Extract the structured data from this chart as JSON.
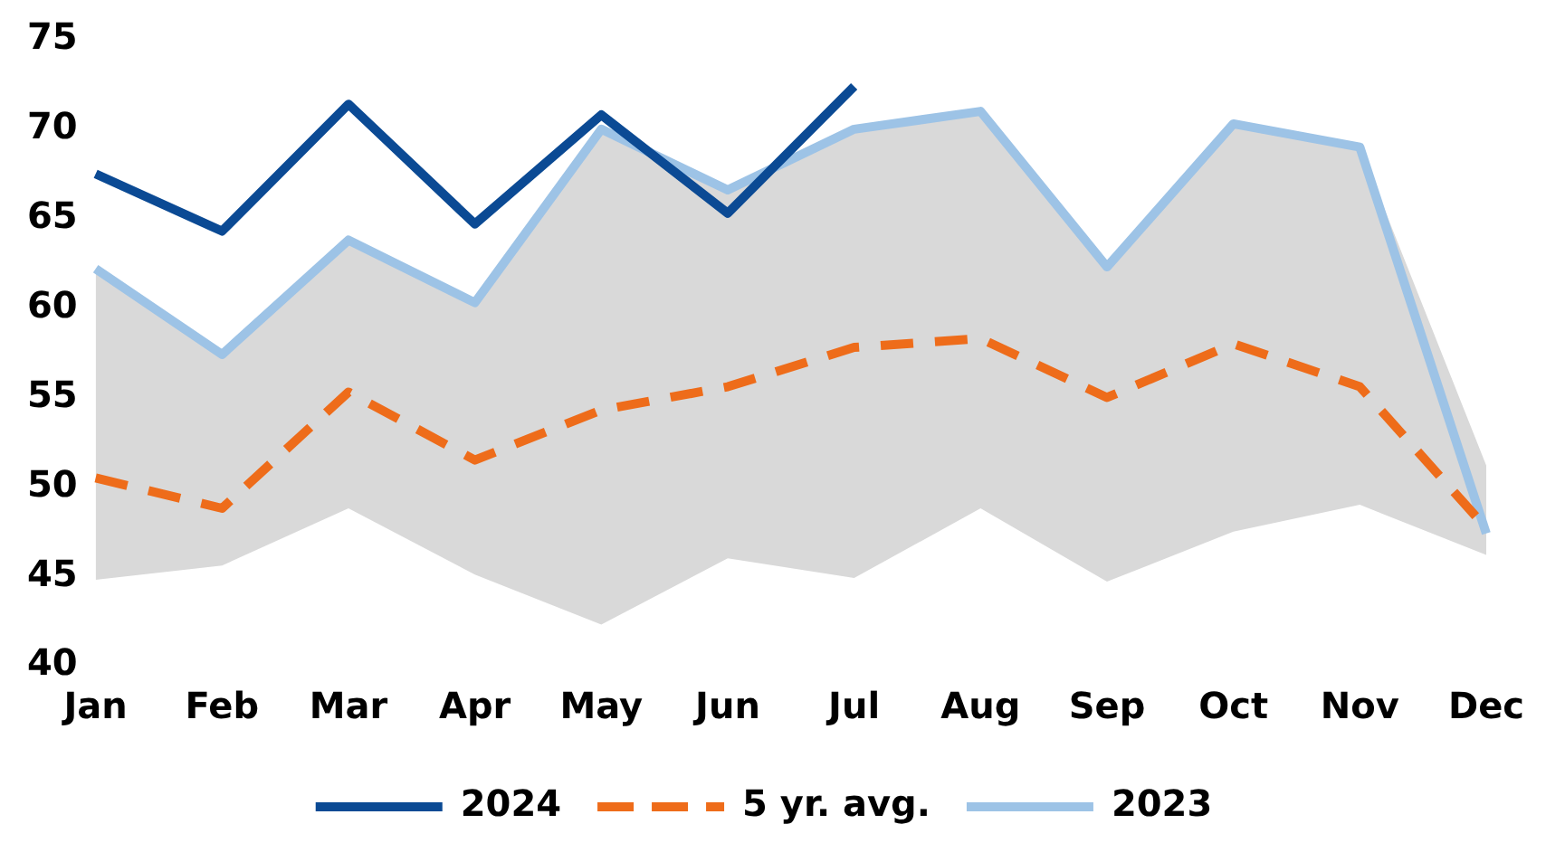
{
  "chart_data": {
    "type": "line",
    "categories": [
      "Jan",
      "Feb",
      "Mar",
      "Apr",
      "May",
      "Jun",
      "Jul",
      "Aug",
      "Sep",
      "Oct",
      "Nov",
      "Dec"
    ],
    "series": [
      {
        "name": "2024",
        "color": "#0b4a94",
        "line_style": "solid",
        "values": [
          67.5,
          64.3,
          71.4,
          64.7,
          70.8,
          65.3,
          72.4,
          null,
          null,
          null,
          null,
          null
        ]
      },
      {
        "name": "5 yr. avg.",
        "color": "#ee6c1a",
        "line_style": "dashed",
        "values": [
          50.5,
          48.8,
          55.3,
          51.5,
          54.3,
          55.6,
          57.8,
          58.3,
          55,
          58,
          55.6,
          47.7
        ],
        "lower": [
          44.8,
          45.6,
          48.8,
          45.1,
          42.3,
          46,
          44.9,
          48.8,
          44.7,
          47.5,
          49,
          46.2
        ],
        "upper": [
          62,
          57.4,
          63.8,
          60.3,
          70,
          66.6,
          70,
          71,
          62.3,
          70.3,
          69,
          51.2
        ]
      },
      {
        "name": "2023",
        "color": "#9dc3e6",
        "line_style": "solid",
        "values": [
          62.2,
          57.4,
          63.8,
          60.3,
          70,
          66.6,
          70,
          71,
          62.3,
          70.3,
          69,
          47.4
        ]
      }
    ],
    "ylim": [
      40,
      75
    ],
    "yticks": [
      40,
      45,
      50,
      55,
      60,
      65,
      70,
      75
    ],
    "grid": false,
    "legend": "bottom",
    "marker": "none"
  }
}
